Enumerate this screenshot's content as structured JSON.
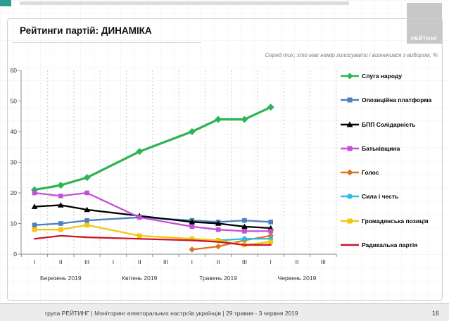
{
  "header": {
    "title": "Рейтинги партій: ДИНАМІКА",
    "subtitle": "Серед тих, хто має намір голосувати і визначився з вибором, %",
    "logo_text": "РЕЙТИНГ"
  },
  "chart_data": {
    "type": "line",
    "title": "Рейтинги партій: ДИНАМІКА",
    "ylabel": "",
    "xlabel": "",
    "ylim": [
      0,
      60
    ],
    "yticks": [
      0,
      10,
      20,
      30,
      40,
      50,
      60
    ],
    "grid": "vertical-dashed",
    "legend_position": "right",
    "categories": [
      "I",
      "II",
      "III",
      "I",
      "II",
      "III",
      "I",
      "II",
      "III",
      "I",
      "II",
      "III"
    ],
    "month_groups": [
      "Березень 2019",
      "Квітень 2019",
      "Травень 2019",
      "Червень 2019"
    ],
    "series": [
      {
        "name": "Слуга народу",
        "color": "#2db553",
        "marker": "diamond",
        "values": [
          21,
          22.5,
          25,
          null,
          33.5,
          null,
          40,
          44,
          44,
          48,
          null,
          null
        ]
      },
      {
        "name": "Опозиційна платформа",
        "color": "#4f81bd",
        "marker": "square",
        "values": [
          9.5,
          10,
          11,
          null,
          12,
          null,
          11,
          10.5,
          11,
          10.5,
          null,
          null
        ]
      },
      {
        "name": "БПП Солідарність",
        "color": "#000000",
        "marker": "triangle",
        "values": [
          15.5,
          16,
          14.5,
          null,
          12.5,
          null,
          10.5,
          10,
          9,
          8.5,
          null,
          null
        ]
      },
      {
        "name": "Батьківщина",
        "color": "#c44fd8",
        "marker": "square",
        "values": [
          20,
          19,
          20,
          null,
          12,
          null,
          9,
          8,
          7.5,
          7.5,
          null,
          null
        ]
      },
      {
        "name": "Голос",
        "color": "#d9731f",
        "marker": "diamond",
        "values": [
          null,
          null,
          null,
          null,
          null,
          null,
          1.5,
          2.5,
          4.5,
          6,
          null,
          null
        ]
      },
      {
        "name": "Сила і честь",
        "color": "#2bbde8",
        "marker": "circle",
        "values": [
          null,
          null,
          null,
          null,
          null,
          null,
          5,
          4.5,
          5,
          5,
          null,
          null
        ]
      },
      {
        "name": "Громадянська позиція",
        "color": "#f2c50f",
        "marker": "square",
        "values": [
          8,
          8,
          9.5,
          null,
          6,
          null,
          5,
          4.5,
          3,
          4,
          null,
          null
        ]
      },
      {
        "name": "Радикальна партія",
        "color": "#cc162b",
        "marker": "none",
        "values": [
          5,
          6,
          5.5,
          null,
          5,
          null,
          4.5,
          4,
          3,
          3,
          null,
          null
        ]
      }
    ]
  },
  "footer": {
    "text": "група РЕЙТИНГ | Моніторинг електоральних настроїв українців | 29 травня - 3 червня 2019",
    "page": "16"
  }
}
